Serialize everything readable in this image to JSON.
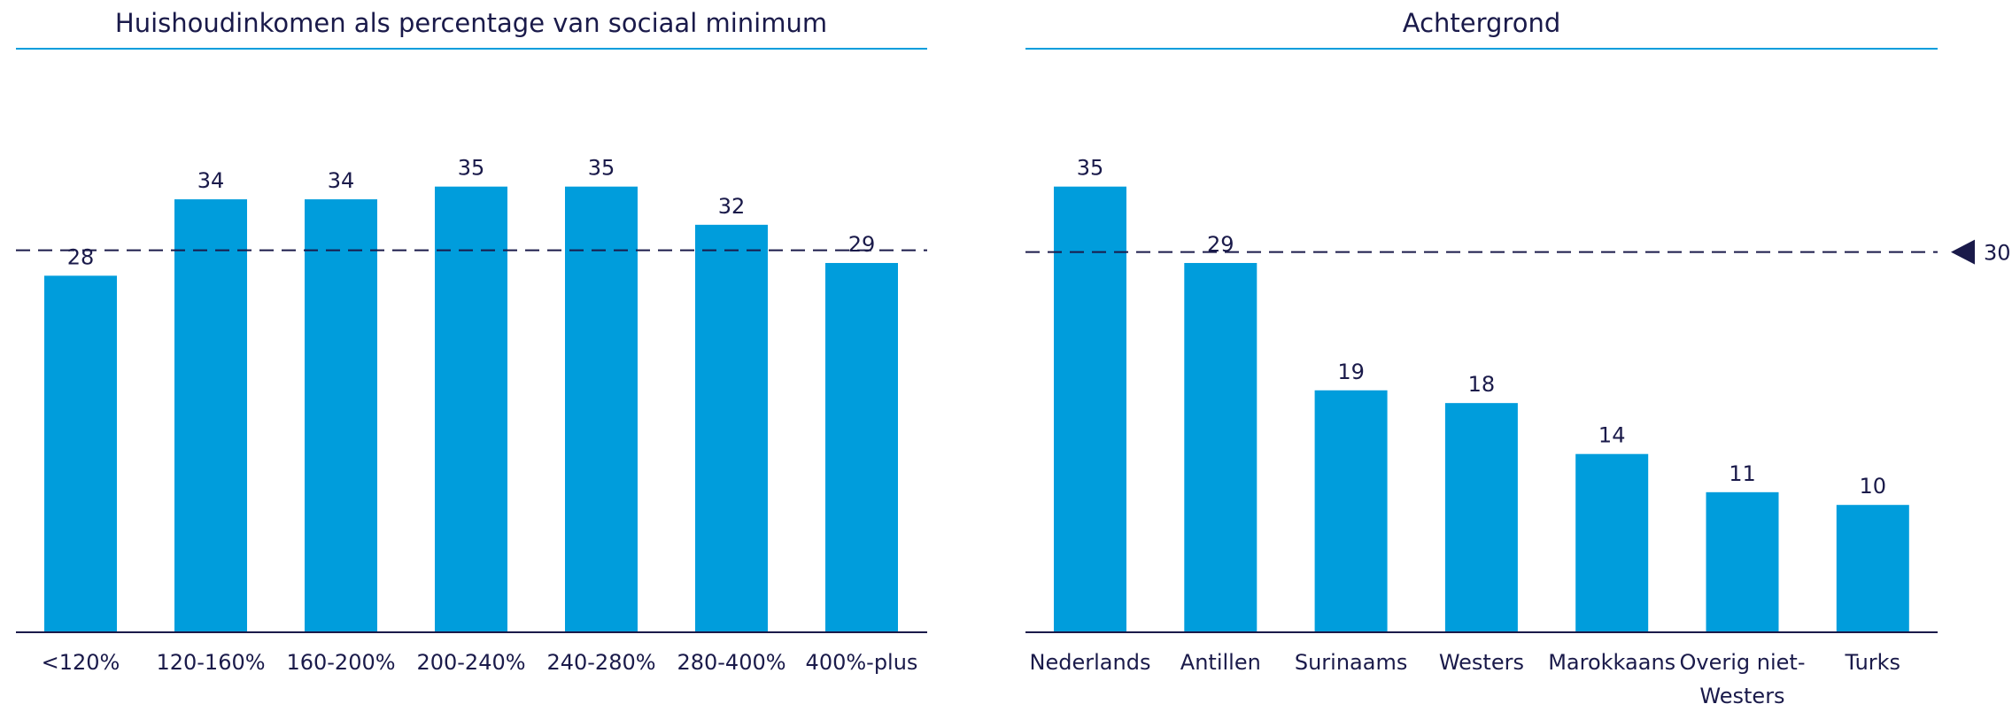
{
  "chart_data": [
    {
      "type": "bar",
      "title": "Huishoudinkomen als percentage van sociaal minimum",
      "categories": [
        "<120%",
        "120-160%",
        "160-200%",
        "200-240%",
        "240-280%",
        "280-400%",
        "400%-plus"
      ],
      "values": [
        28,
        34,
        34,
        35,
        35,
        32,
        29
      ],
      "value_labels": [
        "28",
        "34",
        "34",
        "35",
        "35",
        "32",
        "29"
      ],
      "reference_line": 30,
      "ylim": [
        0,
        40
      ],
      "grid": false,
      "color": "#009ddc"
    },
    {
      "type": "bar",
      "title": "Achtergrond",
      "categories": [
        "Nederlands",
        "Antillen",
        "Surinaams",
        "Westers",
        "Marokkaans",
        "Overig niet-Westers",
        "Turks"
      ],
      "category_lines": [
        [
          "Nederlands"
        ],
        [
          "Antillen"
        ],
        [
          "Surinaams"
        ],
        [
          "Westers"
        ],
        [
          "Marokkaans"
        ],
        [
          "Overig niet-",
          "Westers"
        ],
        [
          "Turks"
        ]
      ],
      "values": [
        35,
        29,
        19,
        18,
        14,
        11,
        10
      ],
      "value_labels": [
        "35",
        "29",
        "19",
        "18",
        "14",
        "11",
        "10"
      ],
      "reference_line": 30,
      "reference_label": "30",
      "ylim": [
        0,
        40
      ],
      "grid": false,
      "color": "#009ddc"
    }
  ],
  "colors": {
    "bar": "#009ddc",
    "title_rule": "#009ddc",
    "text": "#1a1a4a",
    "axis": "#1a1a4a"
  }
}
